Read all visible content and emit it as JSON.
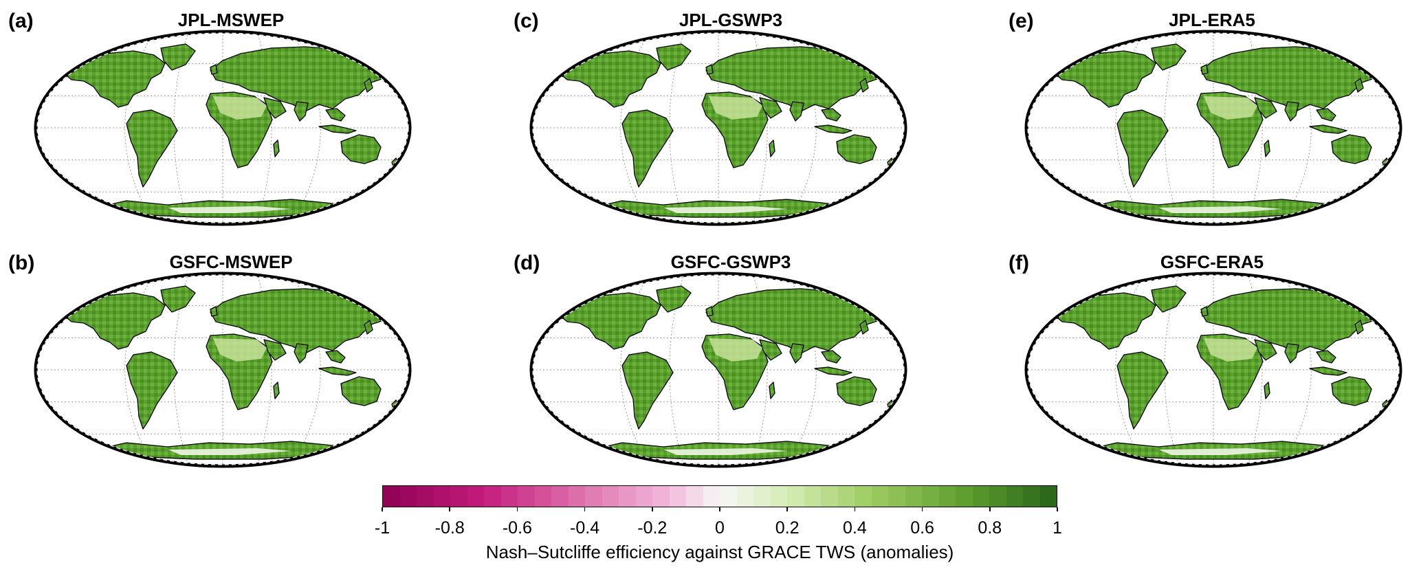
{
  "panels": [
    {
      "letter": "(a)",
      "title": "JPL-MSWEP"
    },
    {
      "letter": "(b)",
      "title": "GSFC-MSWEP"
    },
    {
      "letter": "(c)",
      "title": "JPL-GSWP3"
    },
    {
      "letter": "(d)",
      "title": "GSFC-GSWP3"
    },
    {
      "letter": "(e)",
      "title": "JPL-ERA5"
    },
    {
      "letter": "(f)",
      "title": "GSFC-ERA5"
    }
  ],
  "colorbar": {
    "label": "Nash–Sutcliffe efficiency against GRACE TWS (anomalies)",
    "ticks": [
      "-1",
      "-0.8",
      "-0.6",
      "-0.4",
      "-0.2",
      "0",
      "0.2",
      "0.4",
      "0.6",
      "0.8",
      "1"
    ],
    "range": [
      -1,
      1
    ],
    "low_color": "#8e0152",
    "mid_color": "#f7f7f7",
    "high_color": "#276419"
  },
  "colors": {
    "land_green": "#5aa02c",
    "land_light": "#c7e29a",
    "outline": "#000000",
    "graticule": "#9a9a9a"
  }
}
